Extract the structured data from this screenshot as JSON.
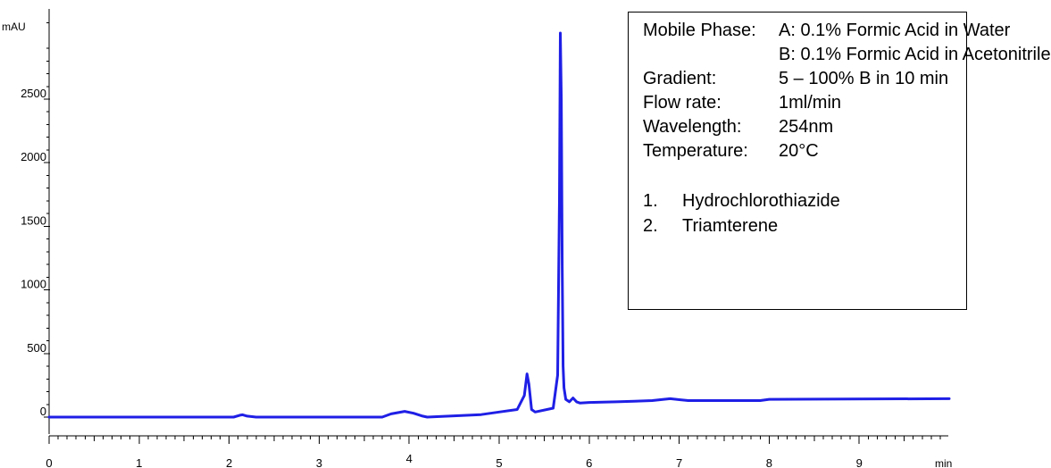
{
  "chart_data": {
    "type": "line",
    "title": "",
    "xlabel": "min",
    "ylabel": "mAU",
    "xlim": [
      0,
      10
    ],
    "ylim": [
      -100,
      3200
    ],
    "x_ticks": [
      0,
      1,
      2,
      3,
      4,
      5,
      6,
      7,
      8,
      9
    ],
    "x_tick_labels": [
      "0",
      "1",
      "2",
      "3",
      "4",
      "5",
      "6",
      "7",
      "8",
      "9"
    ],
    "y_ticks": [
      0,
      500,
      1000,
      1500,
      2000,
      2500
    ],
    "y_tick_labels": [
      "0",
      "500",
      "1000",
      "1500",
      "2000",
      "2500"
    ],
    "grid": false,
    "colors": {
      "trace": "#1f1fe6",
      "axis": "#000000"
    },
    "series": [
      {
        "x": [
          0,
          2.05,
          2.12,
          2.15,
          2.2,
          2.3,
          3.7,
          3.8,
          3.95,
          4.05,
          4.15,
          4.2,
          4.5,
          4.8,
          5.0,
          5.2,
          5.28,
          5.31,
          5.33,
          5.36,
          5.4,
          5.6,
          5.65,
          5.67,
          5.68,
          5.69,
          5.7,
          5.71,
          5.72,
          5.74,
          5.78,
          5.82,
          5.86,
          5.9,
          6.0,
          6.3,
          6.5,
          6.7,
          6.9,
          7.1,
          7.9,
          8.0,
          10.0
        ],
        "y": [
          0,
          0,
          15,
          18,
          8,
          0,
          0,
          25,
          45,
          30,
          8,
          0,
          10,
          20,
          40,
          60,
          170,
          340,
          260,
          60,
          40,
          70,
          330,
          1700,
          3020,
          2500,
          1200,
          400,
          230,
          140,
          120,
          150,
          120,
          110,
          115,
          120,
          125,
          130,
          145,
          130,
          130,
          140,
          145
        ]
      }
    ],
    "annotations": [
      {
        "key": "Mobile Phase:",
        "value": "A: 0.1% Formic Acid in Water"
      },
      {
        "key": "",
        "value": "B: 0.1% Formic Acid in Acetonitrile"
      },
      {
        "key": "Gradient:",
        "value": "5 – 100% B in 10 min"
      },
      {
        "key": "Flow rate:",
        "value": "1ml/min"
      },
      {
        "key": "Wavelength:",
        "value": "254nm"
      },
      {
        "key": "Temperature:",
        "value": "20°C"
      }
    ],
    "peaks": [
      {
        "number": "1.",
        "name": "Hydrochlorothiazide"
      },
      {
        "number": "2.",
        "name": "Triamterene"
      }
    ]
  }
}
